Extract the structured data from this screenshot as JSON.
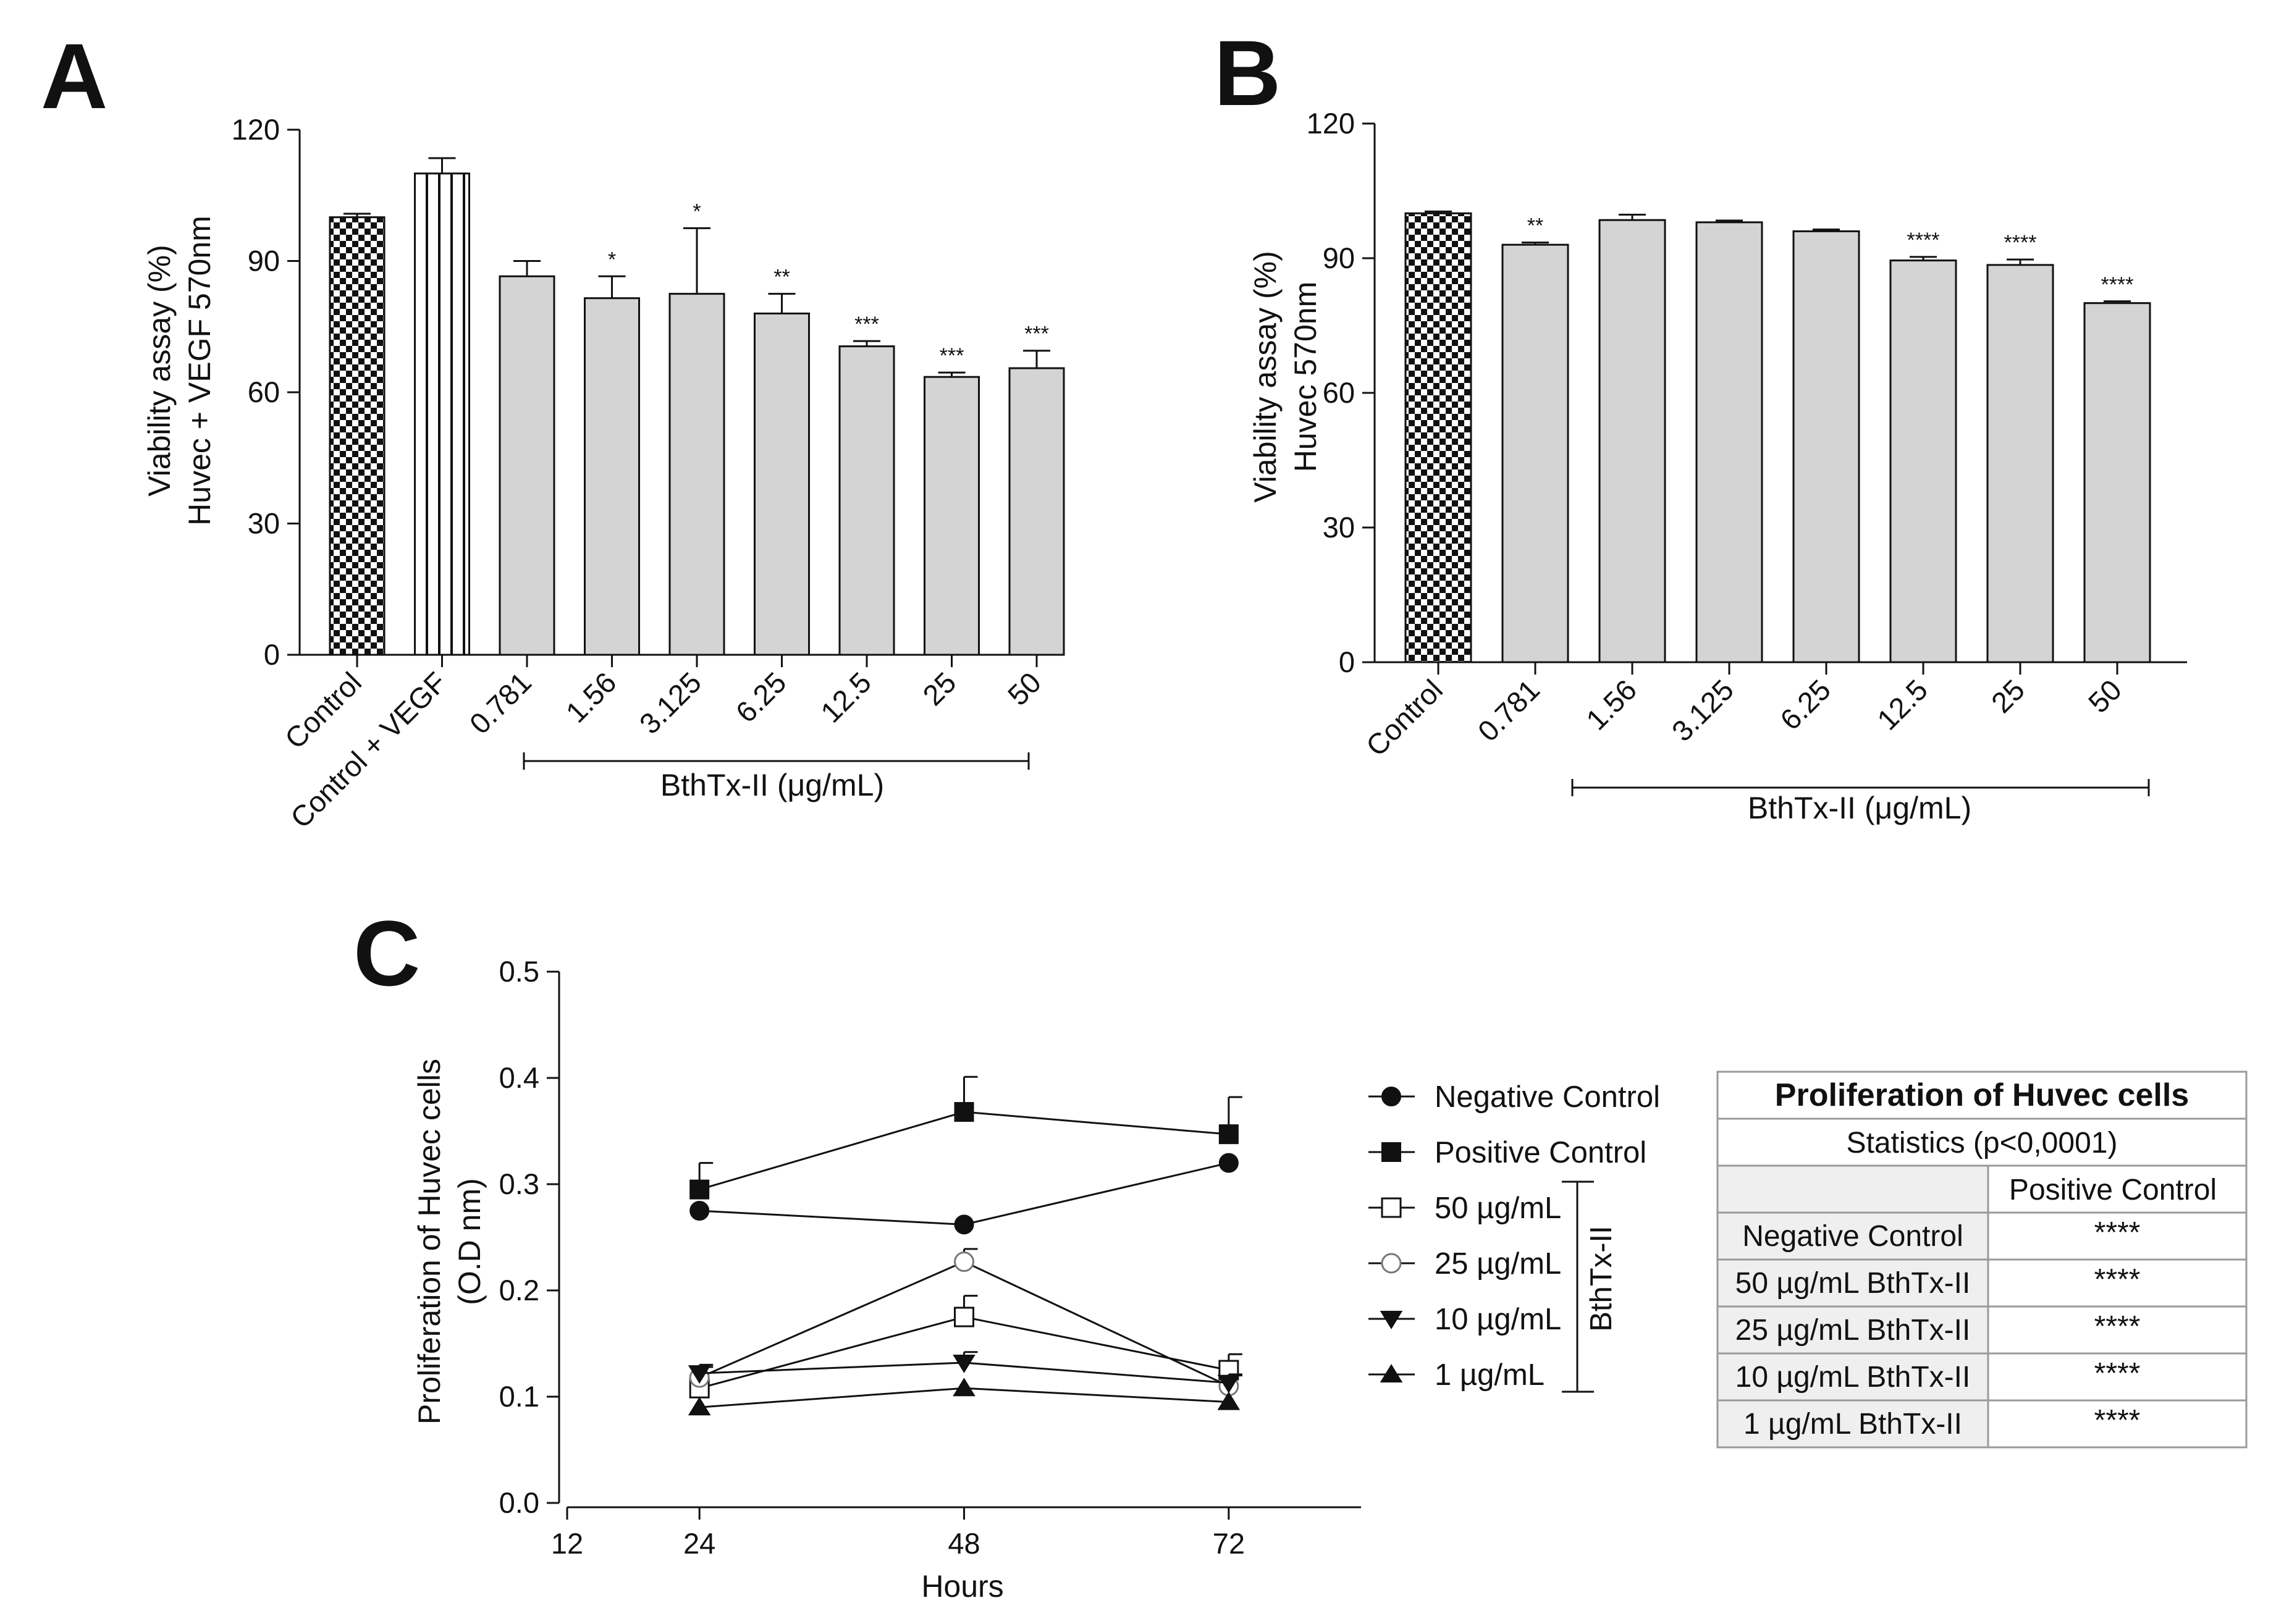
{
  "panels": {
    "a": "A",
    "b": "B",
    "c": "C"
  },
  "colors": {
    "bar_fill": "#d4d4d4",
    "bar_stroke": "#111111",
    "checker_dark": "#111111",
    "table_border": "#9a9a9a",
    "table_shade": "#efefef"
  },
  "chart_data": [
    {
      "id": "A",
      "type": "bar",
      "ylabel_lines": [
        "Viability assay (%)",
        "Huvec + VEGF 570nm"
      ],
      "ylim": [
        0,
        120
      ],
      "yticks": [
        "0",
        "30",
        "60",
        "90",
        "120"
      ],
      "categories": [
        "Control",
        "Control + VEGF",
        "0.781",
        "1.56",
        "3.125",
        "6.25",
        "12.5",
        "25",
        "50"
      ],
      "values": [
        100,
        110,
        86.5,
        81.5,
        82.5,
        78,
        70.5,
        63.5,
        65.5
      ],
      "errors": [
        0.8,
        3.5,
        3.5,
        5,
        15,
        4.5,
        1.2,
        1,
        4
      ],
      "significance": [
        "",
        "",
        "",
        "*",
        "*",
        "**",
        "***",
        "***",
        "***"
      ],
      "patterns": [
        "checker",
        "stripes",
        "gray",
        "gray",
        "gray",
        "gray",
        "gray",
        "gray",
        "gray"
      ],
      "bracket_label": "BthTx-II (μg/mL)"
    },
    {
      "id": "B",
      "type": "bar",
      "ylabel_lines": [
        "Viability assay (%)",
        "Huvec 570nm"
      ],
      "ylim": [
        0,
        120
      ],
      "yticks": [
        "0",
        "30",
        "60",
        "90",
        "120"
      ],
      "categories": [
        "Control",
        "0.781",
        "1.56",
        "3.125",
        "6.25",
        "12.5",
        "25",
        "50"
      ],
      "values": [
        100,
        93,
        98.5,
        98,
        96,
        89.5,
        88.5,
        80
      ],
      "errors": [
        0.4,
        0.5,
        1.2,
        0.4,
        0.4,
        0.8,
        1.2,
        0.4
      ],
      "significance": [
        "",
        "**",
        "",
        "",
        "",
        "****",
        "****",
        "****"
      ],
      "patterns": [
        "checker",
        "gray",
        "gray",
        "gray",
        "gray",
        "gray",
        "gray",
        "gray"
      ],
      "bracket_label": "BthTx-II (μg/mL)"
    },
    {
      "id": "C",
      "type": "line",
      "xlabel": "Hours",
      "ylabel_lines": [
        "Proliferation of Huvec cells",
        "(O.D nm)"
      ],
      "xlim": [
        12,
        84
      ],
      "ylim": [
        0,
        0.5
      ],
      "xticks": [
        12,
        24,
        48,
        72
      ],
      "yticks": [
        "0.0",
        "0.1",
        "0.2",
        "0.3",
        "0.4",
        "0.5"
      ],
      "x": [
        24,
        48,
        72
      ],
      "series": [
        {
          "name": "Negative Control",
          "marker": "circle-filled",
          "values": [
            0.275,
            0.262,
            0.32
          ],
          "errors": [
            0,
            0,
            0
          ]
        },
        {
          "name": "Positive Control",
          "marker": "square-filled",
          "values": [
            0.295,
            0.368,
            0.347
          ],
          "errors": [
            0.025,
            0.033,
            0.035
          ]
        },
        {
          "name": "50 µg/mL",
          "marker": "square-open",
          "values": [
            0.108,
            0.175,
            0.125
          ],
          "errors": [
            0.02,
            0.02,
            0.015
          ]
        },
        {
          "name": "25 µg/mL",
          "marker": "circle-open",
          "values": [
            0.118,
            0.227,
            0.11
          ],
          "errors": [
            0.01,
            0.012,
            0.01
          ]
        },
        {
          "name": "10 µg/mL",
          "marker": "triangle-down-filled",
          "values": [
            0.122,
            0.132,
            0.113
          ],
          "errors": [
            0.008,
            0.01,
            0.008
          ]
        },
        {
          "name": "1 µg/mL",
          "marker": "triangle-up-filled",
          "values": [
            0.09,
            0.108,
            0.095
          ],
          "errors": [
            0,
            0,
            0
          ]
        }
      ],
      "legend_group_label": "BthTx-II"
    }
  ],
  "table": {
    "title": "Proliferation of Huvec cells",
    "subtitle": "Statistics (p<0,0001)",
    "column_header": "Positive Control",
    "rows": [
      {
        "label": "Negative Control",
        "value": "****"
      },
      {
        "label": "50 µg/mL BthTx-II",
        "value": "****"
      },
      {
        "label": "25 µg/mL BthTx-II",
        "value": "****"
      },
      {
        "label": "10 µg/mL BthTx-II",
        "value": "****"
      },
      {
        "label": "1 µg/mL BthTx-II",
        "value": "****"
      }
    ]
  }
}
